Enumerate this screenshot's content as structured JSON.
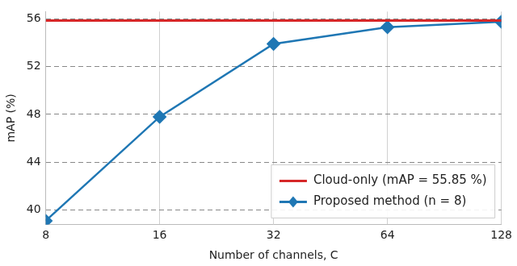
{
  "chart_data": {
    "type": "line",
    "x_label": "Number of channels, C",
    "y_label": "mAP (%)",
    "categories": [
      "8",
      "16",
      "32",
      "64",
      "128"
    ],
    "series": [
      {
        "name": "Cloud-only (mAP = 55.85 %)",
        "color": "#d62728",
        "marker": "none",
        "line_style": "solid",
        "values": [
          55.85,
          55.85,
          55.85,
          55.85,
          55.85
        ]
      },
      {
        "name": "Proposed method (n = 8)",
        "color": "#1f77b4",
        "marker": "diamond",
        "line_style": "solid",
        "values": [
          39.1,
          47.8,
          53.9,
          55.3,
          55.75
        ]
      }
    ],
    "ylim": [
      38.8,
      56.6
    ],
    "yticks": [
      40,
      44,
      48,
      52,
      56
    ],
    "grid": true,
    "legend": "lower right"
  }
}
